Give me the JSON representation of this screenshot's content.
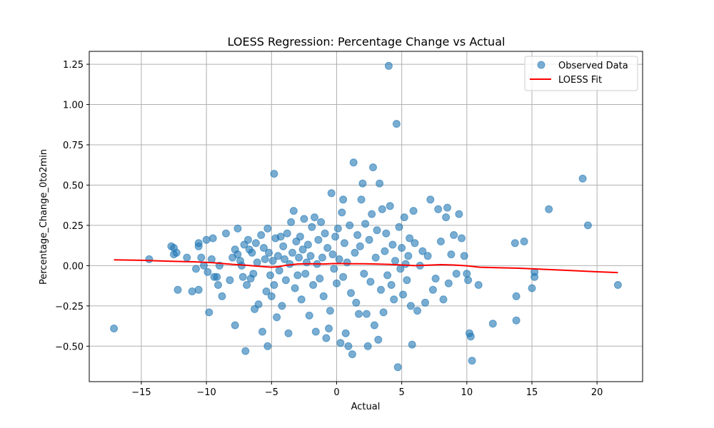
{
  "chart_data": {
    "type": "scatter",
    "title": "LOESS Regression: Percentage Change vs Actual",
    "xlabel": "Actual",
    "ylabel": "Percentage_Change_0to2min",
    "xlim": [
      -19,
      23.5
    ],
    "ylim": [
      -0.72,
      1.33
    ],
    "xticks": [
      -15,
      -10,
      -5,
      0,
      5,
      10,
      15,
      20
    ],
    "xtick_labels": [
      "−15",
      "−10",
      "−5",
      "0",
      "5",
      "10",
      "15",
      "20"
    ],
    "yticks": [
      -0.5,
      -0.25,
      0.0,
      0.25,
      0.5,
      0.75,
      1.0,
      1.25
    ],
    "ytick_labels": [
      "−0.50",
      "−0.25",
      "0.00",
      "0.25",
      "0.50",
      "0.75",
      "1.00",
      "1.25"
    ],
    "grid": true,
    "legend_position": "top-right",
    "series": [
      {
        "name": "Observed Data",
        "kind": "scatter",
        "color": "#1f77b4",
        "alpha": 0.6,
        "points": [
          [
            -17.1,
            -0.39
          ],
          [
            -14.4,
            0.04
          ],
          [
            -12.7,
            0.12
          ],
          [
            -12.5,
            0.11
          ],
          [
            -12.5,
            0.07
          ],
          [
            -12.3,
            0.08
          ],
          [
            -12.2,
            -0.15
          ],
          [
            -11.5,
            0.05
          ],
          [
            -11.1,
            -0.16
          ],
          [
            -10.8,
            -0.02
          ],
          [
            -10.6,
            0.14
          ],
          [
            -10.6,
            0.12
          ],
          [
            -10.6,
            -0.15
          ],
          [
            -10.4,
            0.05
          ],
          [
            -10.2,
            0.0
          ],
          [
            -10.0,
            0.16
          ],
          [
            -9.9,
            -0.04
          ],
          [
            -9.8,
            -0.29
          ],
          [
            -9.6,
            0.04
          ],
          [
            -9.5,
            0.17
          ],
          [
            -9.4,
            -0.07
          ],
          [
            -9.2,
            -0.07
          ],
          [
            -9.1,
            -0.12
          ],
          [
            -9.0,
            0.0
          ],
          [
            -8.8,
            -0.19
          ],
          [
            -8.5,
            0.2
          ],
          [
            -8.2,
            -0.09
          ],
          [
            -8.0,
            0.05
          ],
          [
            -7.8,
            0.1
          ],
          [
            -7.8,
            -0.37
          ],
          [
            -7.6,
            0.23
          ],
          [
            -7.6,
            0.07
          ],
          [
            -7.4,
            0.03
          ],
          [
            -7.3,
            0.0
          ],
          [
            -7.2,
            -0.07
          ],
          [
            -7.1,
            0.13
          ],
          [
            -7.0,
            -0.53
          ],
          [
            -6.9,
            -0.12
          ],
          [
            -6.8,
            0.16
          ],
          [
            -6.7,
            0.1
          ],
          [
            -6.6,
            -0.08
          ],
          [
            -6.5,
            0.08
          ],
          [
            -6.4,
            -0.05
          ],
          [
            -6.3,
            -0.27
          ],
          [
            -6.2,
            0.14
          ],
          [
            -6.1,
            0.02
          ],
          [
            -6.0,
            -0.24
          ],
          [
            -5.8,
            0.19
          ],
          [
            -5.7,
            -0.41
          ],
          [
            -5.6,
            0.11
          ],
          [
            -5.5,
            0.04
          ],
          [
            -5.4,
            -0.16
          ],
          [
            -5.3,
            0.23
          ],
          [
            -5.3,
            -0.5
          ],
          [
            -5.2,
            0.08
          ],
          [
            -5.1,
            -0.06
          ],
          [
            -5.0,
            -0.19
          ],
          [
            -4.9,
            0.03
          ],
          [
            -4.8,
            0.57
          ],
          [
            -4.8,
            -0.12
          ],
          [
            -4.7,
            0.17
          ],
          [
            -4.6,
            -0.32
          ],
          [
            -4.5,
            0.06
          ],
          [
            -4.4,
            -0.03
          ],
          [
            -4.3,
            0.18
          ],
          [
            -4.2,
            -0.25
          ],
          [
            -4.1,
            0.12
          ],
          [
            -4.0,
            0.04
          ],
          [
            -3.9,
            -0.09
          ],
          [
            -3.8,
            0.2
          ],
          [
            -3.7,
            -0.42
          ],
          [
            -3.6,
            0.01
          ],
          [
            -3.5,
            0.27
          ],
          [
            -3.4,
            0.08
          ],
          [
            -3.3,
            0.34
          ],
          [
            -3.2,
            -0.14
          ],
          [
            -3.1,
            0.15
          ],
          [
            -3.0,
            -0.06
          ],
          [
            -2.9,
            0.05
          ],
          [
            -2.8,
            0.18
          ],
          [
            -2.7,
            -0.21
          ],
          [
            -2.6,
            0.1
          ],
          [
            -2.5,
            0.29
          ],
          [
            -2.4,
            -0.05
          ],
          [
            -2.3,
            0.02
          ],
          [
            -2.2,
            0.13
          ],
          [
            -2.1,
            -0.31
          ],
          [
            -2.0,
            0.06
          ],
          [
            -1.9,
            0.24
          ],
          [
            -1.8,
            -0.12
          ],
          [
            -1.7,
            0.3
          ],
          [
            -1.6,
            -0.41
          ],
          [
            -1.5,
            0.01
          ],
          [
            -1.4,
            0.16
          ],
          [
            -1.3,
            -0.08
          ],
          [
            -1.2,
            0.27
          ],
          [
            -1.1,
            0.05
          ],
          [
            -1.0,
            -0.19
          ],
          [
            -0.9,
            0.2
          ],
          [
            -0.8,
            -0.45
          ],
          [
            -0.7,
            0.11
          ],
          [
            -0.6,
            -0.39
          ],
          [
            -0.5,
            -0.28
          ],
          [
            -0.4,
            0.45
          ],
          [
            -0.3,
            0.07
          ],
          [
            -0.2,
            -0.02
          ],
          [
            -0.1,
            0.18
          ],
          [
            0.0,
            -0.11
          ],
          [
            0.1,
            0.23
          ],
          [
            0.2,
            0.04
          ],
          [
            0.3,
            -0.48
          ],
          [
            0.4,
            0.33
          ],
          [
            0.5,
            -0.07
          ],
          [
            0.5,
            0.41
          ],
          [
            0.6,
            0.14
          ],
          [
            0.7,
            -0.42
          ],
          [
            0.8,
            0.02
          ],
          [
            0.9,
            -0.5
          ],
          [
            1.0,
            0.25
          ],
          [
            1.1,
            -0.17
          ],
          [
            1.2,
            -0.55
          ],
          [
            1.3,
            0.64
          ],
          [
            1.4,
            0.08
          ],
          [
            1.5,
            -0.23
          ],
          [
            1.6,
            0.19
          ],
          [
            1.7,
            -0.3
          ],
          [
            1.8,
            0.12
          ],
          [
            1.9,
            0.41
          ],
          [
            2.0,
            0.51
          ],
          [
            2.1,
            -0.05
          ],
          [
            2.2,
            0.26
          ],
          [
            2.3,
            -0.3
          ],
          [
            2.4,
            -0.5
          ],
          [
            2.5,
            0.16
          ],
          [
            2.6,
            -0.1
          ],
          [
            2.7,
            0.32
          ],
          [
            2.8,
            0.61
          ],
          [
            2.9,
            -0.37
          ],
          [
            3.0,
            0.05
          ],
          [
            3.1,
            0.22
          ],
          [
            3.2,
            -0.46
          ],
          [
            3.3,
            0.51
          ],
          [
            3.4,
            -0.15
          ],
          [
            3.5,
            0.35
          ],
          [
            3.6,
            -0.29
          ],
          [
            3.7,
            0.09
          ],
          [
            3.8,
            0.2
          ],
          [
            3.9,
            -0.06
          ],
          [
            4.0,
            1.24
          ],
          [
            4.1,
            0.37
          ],
          [
            4.2,
            -0.12
          ],
          [
            4.3,
            0.13
          ],
          [
            4.4,
            -0.21
          ],
          [
            4.5,
            0.03
          ],
          [
            4.6,
            0.88
          ],
          [
            4.7,
            -0.63
          ],
          [
            4.8,
            0.24
          ],
          [
            4.9,
            -0.02
          ],
          [
            5.0,
            0.11
          ],
          [
            5.1,
            -0.18
          ],
          [
            5.2,
            0.3
          ],
          [
            5.3,
            0.01
          ],
          [
            5.4,
            -0.09
          ],
          [
            5.5,
            0.06
          ],
          [
            5.6,
            0.17
          ],
          [
            5.7,
            -0.25
          ],
          [
            5.8,
            -0.49
          ],
          [
            5.9,
            0.34
          ],
          [
            6.0,
            0.14
          ],
          [
            6.2,
            -0.28
          ],
          [
            6.4,
            0.0
          ],
          [
            6.6,
            0.09
          ],
          [
            6.8,
            -0.23
          ],
          [
            7.0,
            0.06
          ],
          [
            7.2,
            0.41
          ],
          [
            7.4,
            -0.15
          ],
          [
            7.6,
            -0.08
          ],
          [
            7.8,
            0.35
          ],
          [
            8.0,
            0.15
          ],
          [
            8.2,
            -0.21
          ],
          [
            8.4,
            0.3
          ],
          [
            8.5,
            0.36
          ],
          [
            8.6,
            -0.11
          ],
          [
            8.8,
            0.07
          ],
          [
            9.0,
            0.19
          ],
          [
            9.2,
            -0.05
          ],
          [
            9.4,
            0.32
          ],
          [
            9.6,
            0.17
          ],
          [
            9.8,
            0.06
          ],
          [
            10.0,
            -0.05
          ],
          [
            10.1,
            -0.09
          ],
          [
            10.2,
            -0.42
          ],
          [
            10.3,
            -0.44
          ],
          [
            10.4,
            -0.59
          ],
          [
            10.9,
            -0.12
          ],
          [
            12.0,
            -0.36
          ],
          [
            13.7,
            0.14
          ],
          [
            13.8,
            -0.19
          ],
          [
            13.8,
            -0.34
          ],
          [
            14.4,
            0.15
          ],
          [
            15.0,
            -0.14
          ],
          [
            15.2,
            -0.07
          ],
          [
            15.2,
            -0.04
          ],
          [
            16.3,
            0.35
          ],
          [
            18.9,
            0.54
          ],
          [
            19.3,
            0.25
          ],
          [
            21.6,
            -0.12
          ]
        ]
      },
      {
        "name": "LOESS Fit",
        "kind": "line",
        "color": "#ff0000",
        "points": [
          [
            -17.1,
            0.036
          ],
          [
            -15.0,
            0.033
          ],
          [
            -13.0,
            0.028
          ],
          [
            -11.0,
            0.024
          ],
          [
            -9.5,
            0.018
          ],
          [
            -8.0,
            0.008
          ],
          [
            -7.0,
            0.003
          ],
          [
            -6.0,
            -0.004
          ],
          [
            -5.0,
            -0.01
          ],
          [
            -4.5,
            -0.007
          ],
          [
            -4.0,
            0.001
          ],
          [
            -3.0,
            0.01
          ],
          [
            -2.0,
            0.012
          ],
          [
            -1.0,
            0.01
          ],
          [
            0.0,
            0.013
          ],
          [
            1.0,
            0.012
          ],
          [
            2.0,
            0.012
          ],
          [
            3.0,
            0.01
          ],
          [
            4.0,
            0.008
          ],
          [
            5.0,
            0.004
          ],
          [
            6.0,
            0.0
          ],
          [
            7.0,
            0.003
          ],
          [
            8.0,
            0.006
          ],
          [
            9.0,
            0.004
          ],
          [
            10.0,
            -0.001
          ],
          [
            11.0,
            -0.01
          ],
          [
            12.0,
            -0.012
          ],
          [
            14.0,
            -0.016
          ],
          [
            16.0,
            -0.023
          ],
          [
            18.0,
            -0.03
          ],
          [
            20.0,
            -0.038
          ],
          [
            21.6,
            -0.043
          ]
        ]
      }
    ]
  }
}
